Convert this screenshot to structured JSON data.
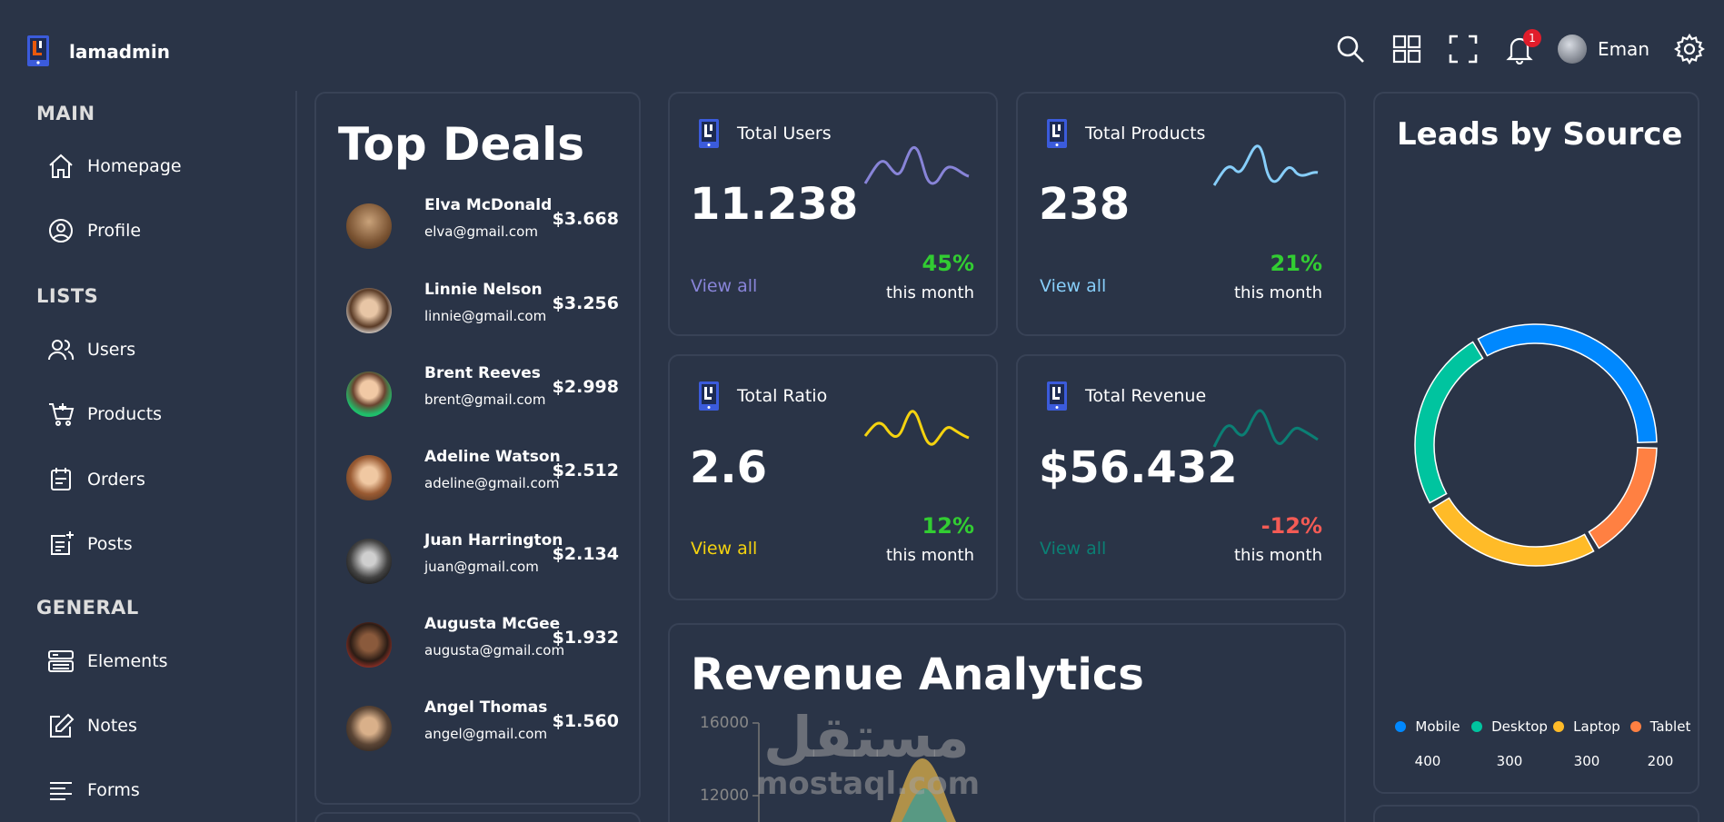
{
  "app": {
    "logo_text": "lamadmin"
  },
  "navbar": {
    "notification_count": "1",
    "user_name": "Eman"
  },
  "sidebar": {
    "sections": [
      {
        "title": "MAIN",
        "items": [
          {
            "label": "Homepage",
            "icon": "home-icon"
          },
          {
            "label": "Profile",
            "icon": "user-circle-icon"
          }
        ]
      },
      {
        "title": "LISTS",
        "items": [
          {
            "label": "Users",
            "icon": "users-icon"
          },
          {
            "label": "Products",
            "icon": "cart-icon"
          },
          {
            "label": "Orders",
            "icon": "calendar-icon"
          },
          {
            "label": "Posts",
            "icon": "post-add-icon"
          }
        ]
      },
      {
        "title": "GENERAL",
        "items": [
          {
            "label": "Elements",
            "icon": "elements-icon"
          },
          {
            "label": "Notes",
            "icon": "edit-icon"
          },
          {
            "label": "Forms",
            "icon": "form-lines-icon"
          }
        ]
      }
    ]
  },
  "top_deals": {
    "title": "Top Deals",
    "deals": [
      {
        "name": "Elva McDonald",
        "email": "elva@gmail.com",
        "amount": "$3.668"
      },
      {
        "name": "Linnie Nelson",
        "email": "linnie@gmail.com",
        "amount": "$3.256"
      },
      {
        "name": "Brent Reeves",
        "email": "brent@gmail.com",
        "amount": "$2.998"
      },
      {
        "name": "Adeline Watson",
        "email": "adeline@gmail.com",
        "amount": "$2.512"
      },
      {
        "name": "Juan Harrington",
        "email": "juan@gmail.com",
        "amount": "$2.134"
      },
      {
        "name": "Augusta McGee",
        "email": "augusta@gmail.com",
        "amount": "$1.932"
      },
      {
        "name": "Angel Thomas",
        "email": "angel@gmail.com",
        "amount": "$1.560"
      }
    ]
  },
  "cards": [
    {
      "title": "Total Users",
      "number": "11.238",
      "link": "View all",
      "percentage": "45%",
      "duration": "this month",
      "color": "#8884d8",
      "pct_color": "#32cd32"
    },
    {
      "title": "Total Products",
      "number": "238",
      "link": "View all",
      "percentage": "21%",
      "duration": "this month",
      "color": "#87cefa",
      "pct_color": "#32cd32"
    },
    {
      "title": "Total Ratio",
      "number": "2.6",
      "link": "View all",
      "percentage": "12%",
      "duration": "this month",
      "color": "#f5d30f",
      "pct_color": "#32cd32"
    },
    {
      "title": "Total Revenue",
      "number": "$56.432",
      "link": "View all",
      "percentage": "-12%",
      "duration": "this month",
      "color": "#0b7f74",
      "pct_color": "#f45b55"
    }
  ],
  "leads": {
    "title": "Leads by Source",
    "chart_data": {
      "type": "pie",
      "labels": [
        "Mobile",
        "Desktop",
        "Laptop",
        "Tablet"
      ],
      "values": [
        400,
        300,
        300,
        200
      ],
      "colors": [
        "#0088FE",
        "#00C49F",
        "#FFBB28",
        "#FF8042"
      ]
    }
  },
  "revenue": {
    "title": "Revenue Analytics",
    "chart_data": {
      "type": "area",
      "y_ticks": [
        "16000",
        "12000"
      ]
    }
  },
  "watermark": {
    "arabic": "مستقل",
    "latin": "mostaql.com"
  }
}
